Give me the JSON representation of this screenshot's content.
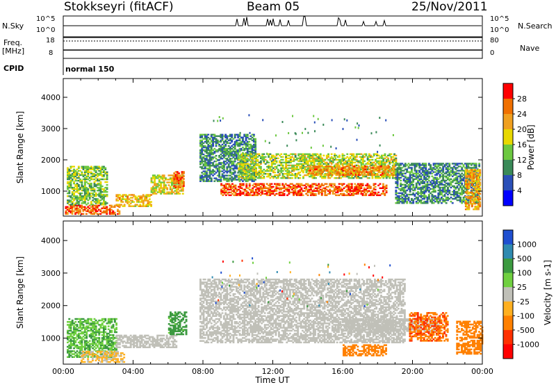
{
  "header": {
    "station": "Stokkseyri (fitACF)",
    "beam": "Beam 05",
    "date": "25/Nov/2011"
  },
  "params": {
    "nsky_label": "N.Sky",
    "nsky_ticks": [
      "10^5",
      "10^0"
    ],
    "nsearch_label": "N.Search",
    "nsearch_ticks": [
      "10^5",
      "10^0"
    ],
    "freq_label": "Freq.",
    "freq_unit": "[MHz]",
    "freq_ticks": [
      "18",
      "8"
    ],
    "nave_label": "Nave",
    "nave_ticks": [
      "80",
      "0"
    ],
    "cpid_label": "CPID",
    "cpid_value": "normal 150"
  },
  "chart_data": [
    {
      "type": "heatmap",
      "name": "power",
      "ylabel": "Slant Range [km]",
      "yticks": [
        "1000",
        "2000",
        "3000",
        "4000"
      ],
      "ylim": [
        200,
        4600
      ],
      "xlim": [
        0,
        24
      ],
      "xticks": [
        "00:00",
        "04:00",
        "08:00",
        "12:00",
        "16:00",
        "20:00",
        "00:00"
      ],
      "colorbar": {
        "label": "Power [dB]",
        "ticks": [
          "4",
          "8",
          "12",
          "16",
          "20",
          "24",
          "28"
        ],
        "colors": [
          "#0000ff",
          "#2a4fb8",
          "#3a8a58",
          "#6cc840",
          "#e8d800",
          "#f0a020",
          "#f07000",
          "#ff0000"
        ]
      },
      "features": [
        {
          "t0": 0.1,
          "t1": 3.2,
          "r0": 250,
          "r1": 550,
          "level": 26
        },
        {
          "t0": 0.2,
          "t1": 2.5,
          "r0": 550,
          "r1": 1800,
          "level": 14
        },
        {
          "t0": 3.0,
          "t1": 5.0,
          "r0": 500,
          "r1": 900,
          "level": 20
        },
        {
          "t0": 5.0,
          "t1": 6.8,
          "r0": 900,
          "r1": 1500,
          "level": 18
        },
        {
          "t0": 6.3,
          "t1": 6.9,
          "r0": 1100,
          "r1": 1600,
          "level": 26
        },
        {
          "t0": 7.8,
          "t1": 11.0,
          "r0": 1300,
          "r1": 2800,
          "level": 10
        },
        {
          "t0": 9.0,
          "t1": 18.5,
          "r0": 850,
          "r1": 1250,
          "level": 27
        },
        {
          "t0": 10.0,
          "t1": 19.0,
          "r0": 1400,
          "r1": 2200,
          "level": 16
        },
        {
          "t0": 14.0,
          "t1": 19.0,
          "r0": 1500,
          "r1": 1800,
          "level": 24
        },
        {
          "t0": 19.0,
          "t1": 23.8,
          "r0": 600,
          "r1": 1900,
          "level": 10
        },
        {
          "t0": 23.0,
          "t1": 23.9,
          "r0": 400,
          "r1": 1700,
          "level": 22
        }
      ]
    },
    {
      "type": "heatmap",
      "name": "velocity",
      "ylabel": "Slant Range [km]",
      "xlabel": "Time UT",
      "yticks": [
        "1000",
        "2000",
        "3000",
        "4000"
      ],
      "ylim": [
        200,
        4600
      ],
      "xlim": [
        0,
        24
      ],
      "xticks": [
        "00:00",
        "04:00",
        "08:00",
        "12:00",
        "16:00",
        "20:00",
        "00:00"
      ],
      "colorbar": {
        "label": "Velocity [m s-1]",
        "ticks": [
          "1000",
          "500",
          "100",
          "25",
          "-25",
          "-100",
          "-500",
          "-1000"
        ],
        "colors": [
          "#1f4fd0",
          "#2f8ab0",
          "#3c9a40",
          "#70d040",
          "#c0c0b8",
          "#ffb020",
          "#ff8000",
          "#ff3000",
          "#ff0000"
        ]
      },
      "features": [
        {
          "t0": 0.2,
          "t1": 3.0,
          "r0": 400,
          "r1": 1600,
          "v": 90
        },
        {
          "t0": 1.0,
          "t1": 3.5,
          "r0": 250,
          "r1": 600,
          "v": -30
        },
        {
          "t0": 3.0,
          "t1": 6.5,
          "r0": 700,
          "r1": 1100,
          "v": 0
        },
        {
          "t0": 6.0,
          "t1": 7.0,
          "r0": 1100,
          "r1": 1800,
          "v": 200
        },
        {
          "t0": 7.8,
          "t1": 19.5,
          "r0": 850,
          "r1": 2800,
          "v": 0
        },
        {
          "t0": 15.5,
          "t1": 21.5,
          "r0": 1200,
          "r1": 1600,
          "v": 5
        },
        {
          "t0": 16.0,
          "t1": 18.5,
          "r0": 450,
          "r1": 800,
          "v": -300
        },
        {
          "t0": 19.8,
          "t1": 22.0,
          "r0": 900,
          "r1": 1800,
          "v": -400
        },
        {
          "t0": 22.5,
          "t1": 24.0,
          "r0": 500,
          "r1": 1500,
          "v": -250
        }
      ]
    }
  ]
}
